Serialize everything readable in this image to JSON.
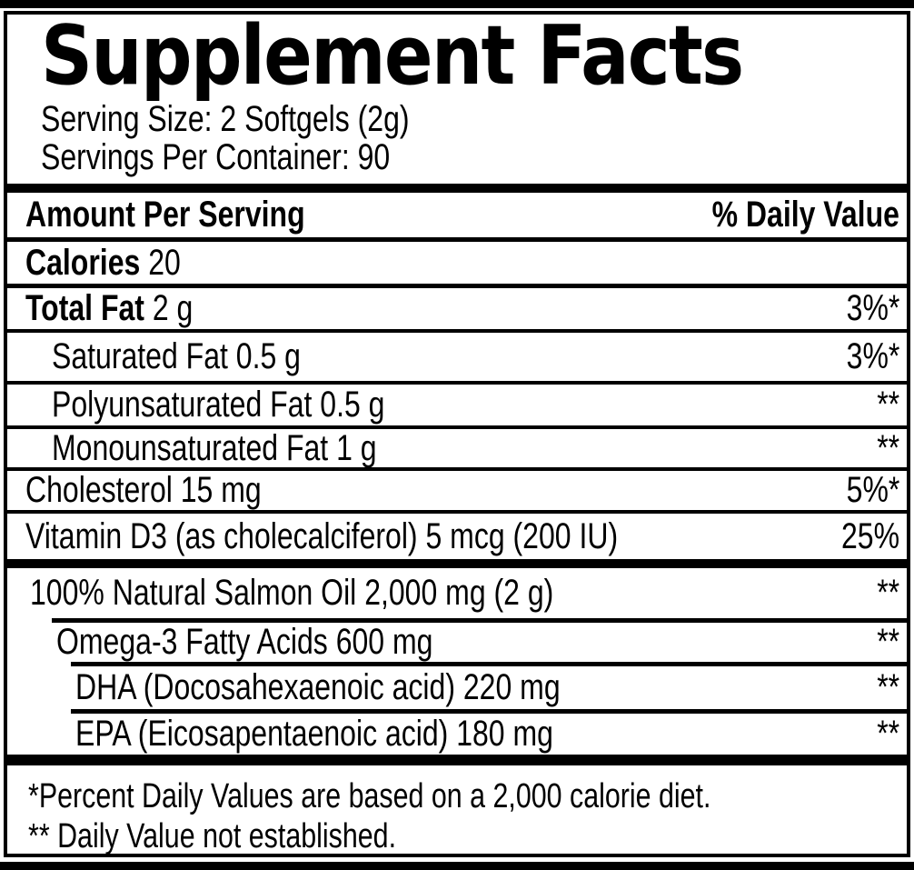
{
  "label": {
    "title": "Supplement Facts",
    "serving": {
      "size": "Serving Size: 2 Softgels (2g)",
      "per_container": "Servings Per Container: 90"
    },
    "columns": {
      "amount_header": "Amount Per Serving",
      "dv_header": "% Daily Value"
    },
    "calories": {
      "name": "Calories",
      "value": "20"
    },
    "main_rows": [
      {
        "name": "Total Fat",
        "amount": "2 g",
        "dv": "3%*"
      },
      {
        "name": "Saturated Fat",
        "amount": "0.5 g",
        "dv": "3%*"
      },
      {
        "name": "Polyunsaturated Fat",
        "amount": "0.5 g",
        "dv": "**"
      },
      {
        "name": "Monounsaturated Fat",
        "amount": "1 g",
        "dv": "**"
      },
      {
        "name": "Cholesterol",
        "amount": "15 mg",
        "dv": "5%*"
      },
      {
        "name": "Vitamin D3 (as cholecalciferol)",
        "amount": "5 mcg (200 IU)",
        "dv": "25%"
      }
    ],
    "oil_rows": [
      {
        "name": "100% Natural Salmon Oil",
        "amount": "2,000 mg (2 g)",
        "dv": "**"
      },
      {
        "name": "Omega-3 Fatty Acids",
        "amount": "600 mg",
        "dv": "**"
      },
      {
        "name": "DHA (Docosahexaenoic acid)",
        "amount": "220 mg",
        "dv": "**"
      },
      {
        "name": "EPA (Eicosapentaenoic acid)",
        "amount": "180 mg",
        "dv": "**"
      }
    ],
    "footnotes": [
      "*Percent Daily Values are based on a 2,000 calorie diet.",
      "** Daily Value not established."
    ],
    "colors": {
      "ink": "#000000",
      "background": "#ffffff"
    }
  }
}
